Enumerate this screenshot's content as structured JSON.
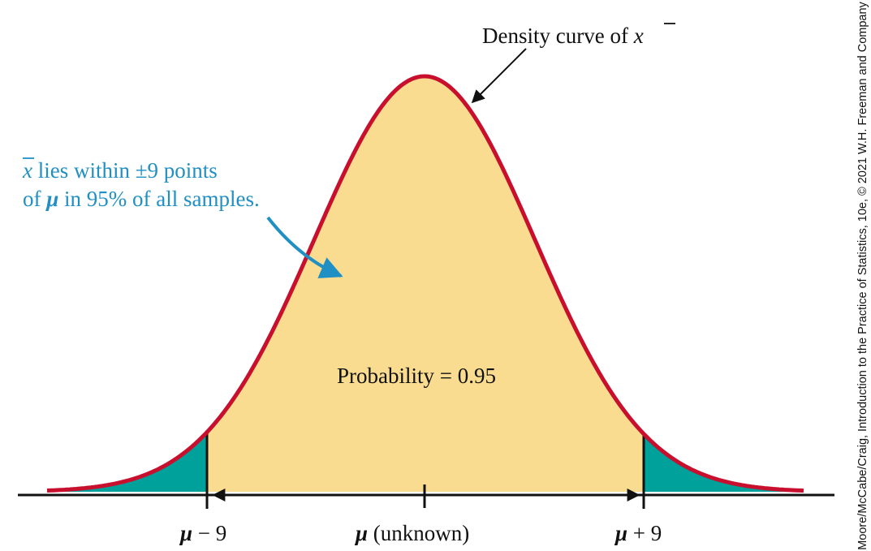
{
  "colors": {
    "curve": "#c8102e",
    "fill_middle": "#f9dc8f",
    "fill_tails": "#00a19a",
    "callout": "#1f8fc4",
    "ink": "#111111"
  },
  "chart_data": {
    "type": "area",
    "distribution": "normal",
    "center_label": "μ (unknown)",
    "left_cut_label": "μ − 9",
    "right_cut_label": "μ + 9",
    "middle_probability": 0.95,
    "shaded_tails": true
  },
  "annotations": {
    "curve_label_prefix": "Density curve of ",
    "xbar_symbol": "x",
    "callout_line1_rest": " lies within ±9 points",
    "callout_line2_of": "of ",
    "callout_line2_mu": "μ",
    "callout_line2_rest": " in 95% of all samples.",
    "probability_label": "Probability = 0.95"
  },
  "axis": {
    "left_tick_mu": "μ",
    "left_tick_rest": " − 9",
    "center_tick_mu": "μ",
    "center_tick_rest": " (unknown)",
    "right_tick_mu": "μ",
    "right_tick_rest": " + 9"
  },
  "credit": {
    "text": "Moore/McCabe/Craig, Introduction to the Practice of Statistics, 10e, © 2021 W.H. Freeman and Company"
  }
}
